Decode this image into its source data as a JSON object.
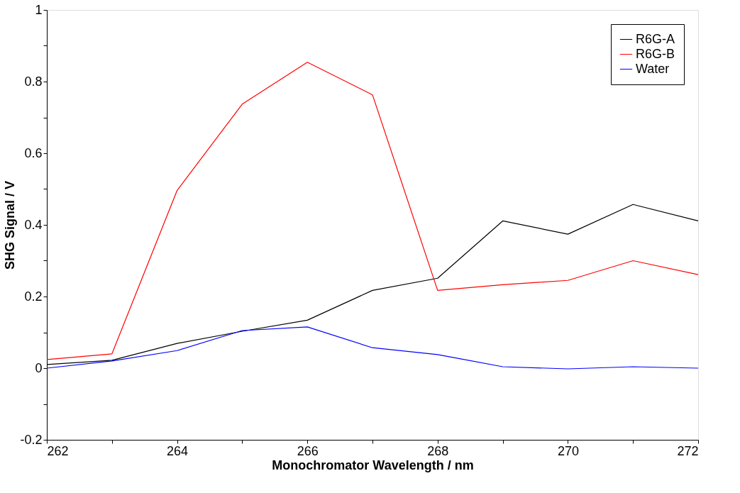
{
  "chart_data": {
    "type": "line",
    "xlabel": "Monochromator Wavelength / nm",
    "ylabel": "SHG Signal / V",
    "x": [
      262,
      263,
      264,
      265,
      266,
      267,
      268,
      269,
      270,
      271,
      272
    ],
    "series": [
      {
        "name": "R6G-A",
        "color": "#000000",
        "values": [
          0.01,
          0.022,
          0.069,
          0.103,
          0.134,
          0.217,
          0.251,
          0.411,
          0.374,
          0.457,
          0.411
        ]
      },
      {
        "name": "R6G-B",
        "color": "#ff0000",
        "values": [
          0.024,
          0.04,
          0.496,
          0.737,
          0.854,
          0.763,
          0.217,
          0.233,
          0.245,
          0.3,
          0.261
        ]
      },
      {
        "name": "Water",
        "color": "#0000ff",
        "values": [
          0.0,
          0.02,
          0.049,
          0.105,
          0.115,
          0.057,
          0.038,
          0.004,
          -0.002,
          0.004,
          0.0
        ]
      }
    ],
    "xlim": [
      262,
      272
    ],
    "xticks": [
      262,
      {
        "value": 263,
        "label": null
      },
      264,
      {
        "value": 265,
        "label": null
      },
      266,
      {
        "value": 267,
        "label": null
      },
      268,
      {
        "value": 269,
        "label": null
      },
      270,
      {
        "value": 271,
        "label": null
      },
      272
    ],
    "ylim": [
      -0.2,
      1
    ],
    "yticks": [
      -0.2,
      {
        "value": -0.1,
        "label": null
      },
      0,
      {
        "value": 0.1,
        "label": null
      },
      0.2,
      {
        "value": 0.3,
        "label": null
      },
      0.4,
      {
        "value": 0.5,
        "label": null
      },
      0.6,
      {
        "value": 0.7,
        "label": null
      },
      0.8,
      {
        "value": 0.9,
        "label": null
      },
      1
    ],
    "grid": false,
    "legend": "top right",
    "marker": "none",
    "line_style": "solid"
  }
}
